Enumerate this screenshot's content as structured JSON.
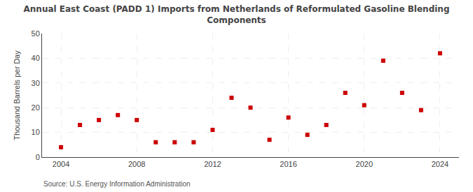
{
  "chart_data": {
    "type": "scatter",
    "title": "Annual East Coast (PADD 1) Imports from Netherlands of Reformulated Gasoline Blending\nComponents",
    "y_label": "Thousand Barrels per Day",
    "annotations": [
      "Source: U.S. Energy Information Administration"
    ],
    "x": [
      2004,
      2005,
      2006,
      2007,
      2008,
      2009,
      2010,
      2011,
      2012,
      2013,
      2014,
      2015,
      2016,
      2017,
      2018,
      2019,
      2020,
      2021,
      2022,
      2023,
      2024
    ],
    "values": [
      4,
      13,
      15,
      17,
      15,
      6,
      6,
      6,
      11,
      24,
      20,
      7,
      16,
      9,
      13,
      26,
      21,
      39,
      26,
      19,
      42
    ],
    "color": "#cc0000",
    "marker": "square",
    "xlim": [
      2003,
      2025
    ],
    "xticks": [
      2004,
      2008,
      2012,
      2016,
      2020,
      2024
    ],
    "ylim": [
      0,
      50
    ],
    "yticks": [
      0,
      10,
      20,
      30,
      40,
      50
    ],
    "grid": true
  }
}
